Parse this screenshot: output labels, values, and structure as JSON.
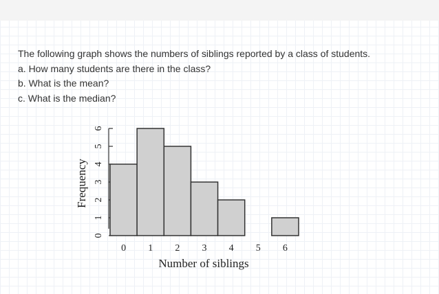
{
  "question": {
    "intro": "The following graph shows the numbers of siblings reported by a class of students.",
    "parts": [
      "a. How many students are there in the class?",
      "b. What is the mean?",
      "c. What is the median?"
    ]
  },
  "chart_data": {
    "type": "bar",
    "x_label": "Number of siblings",
    "y_label": "Frequency",
    "categories": [
      "0",
      "1",
      "2",
      "3",
      "4",
      "5",
      "6"
    ],
    "values": [
      4,
      6,
      5,
      3,
      2,
      0,
      1
    ],
    "color": "#d0d0d0",
    "ylim": [
      0,
      6
    ],
    "yticks": [
      0,
      1,
      2,
      3,
      4,
      5,
      6
    ]
  }
}
